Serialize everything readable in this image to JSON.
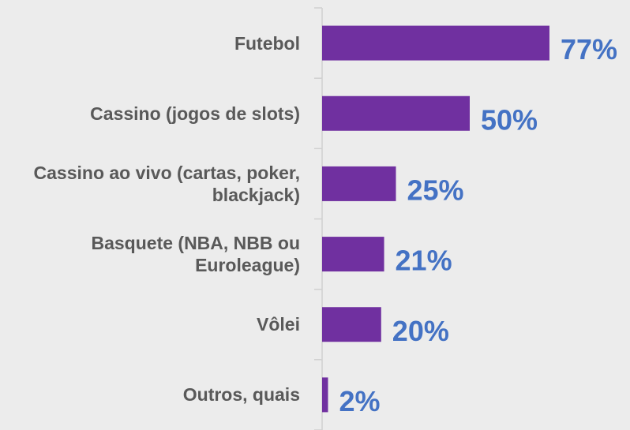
{
  "chart_data": {
    "type": "barh",
    "categories": [
      "Futebol",
      "Cassino (jogos de slots)",
      "Cassino ao vivo (cartas, poker, blackjack)",
      "Basquete (NBA, NBB ou Euroleague)",
      "Vôlei",
      "Outros, quais"
    ],
    "values": [
      77,
      50,
      25,
      21,
      20,
      2
    ],
    "value_labels": [
      "77%",
      "50%",
      "25%",
      "21%",
      "20%",
      "2%"
    ],
    "color": "#7030a0",
    "label_color": "#4472c4",
    "xlim": [
      0,
      100
    ]
  }
}
